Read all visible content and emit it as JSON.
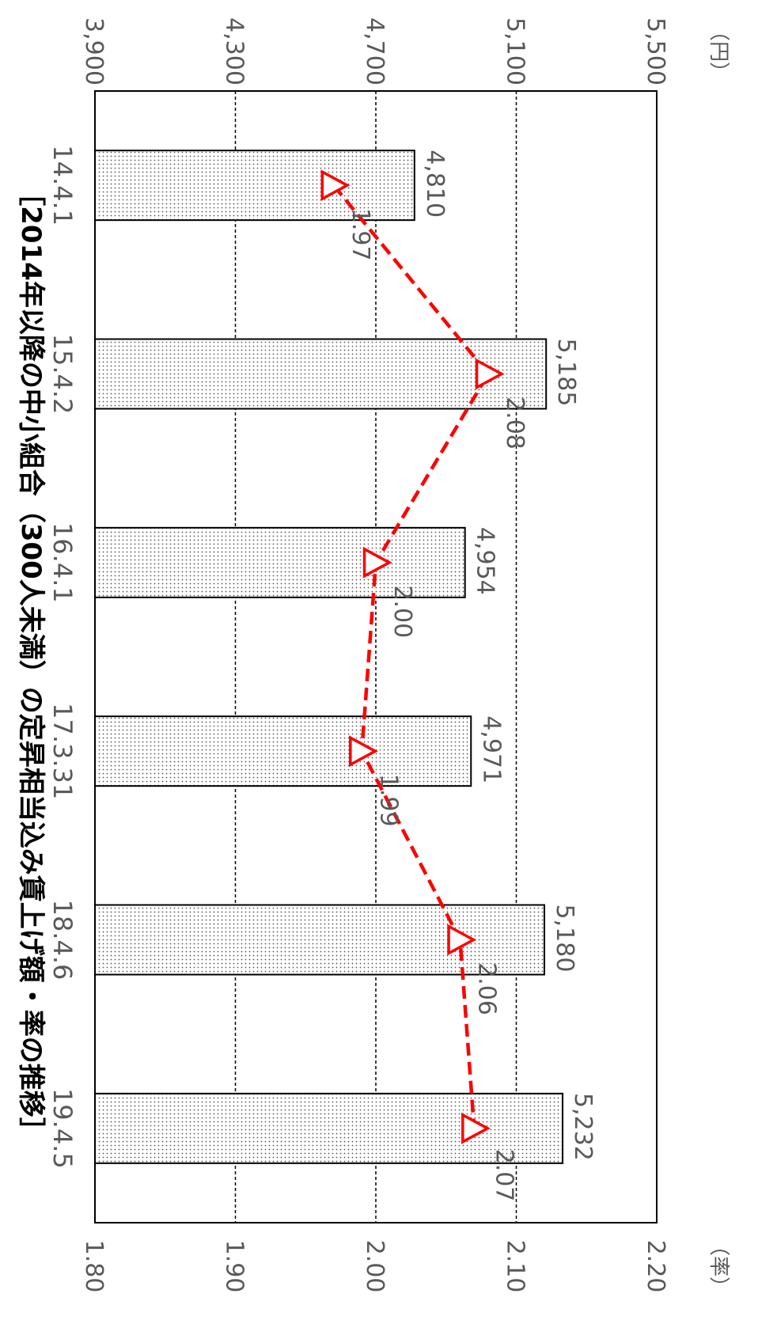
{
  "chart_data": {
    "type": "bar",
    "title": "［2014年以降の中小組合（300人未満）の定昇相当込み賃上げ額・率の推移］",
    "categories": [
      "14.4.1",
      "15.4.2",
      "16.4.1",
      "17.3.31",
      "18.4.6",
      "19.4.5"
    ],
    "series": [
      {
        "type": "bar",
        "values": [
          4810,
          5185,
          4954,
          4971,
          5180,
          5232
        ],
        "labels": [
          "4,810",
          "5,185",
          "4,954",
          "4,971",
          "5,180",
          "5,232"
        ],
        "axis": "left",
        "fill": "dotted"
      },
      {
        "type": "line",
        "values": [
          1.97,
          2.08,
          2.0,
          1.99,
          2.06,
          2.07
        ],
        "labels": [
          "1.97",
          "2.08",
          "2.00",
          "1.99",
          "2.06",
          "2.07"
        ],
        "axis": "right",
        "marker": "triangle",
        "line_style": "dashed"
      }
    ],
    "left_axis": {
      "unit": "（円）",
      "range": [
        3900,
        5500
      ],
      "ticks": [
        "3,900",
        "4,300",
        "4,700",
        "5,100",
        "5,500"
      ],
      "tick_values": [
        3900,
        4300,
        4700,
        5100,
        5500
      ]
    },
    "right_axis": {
      "unit": "（率）",
      "range": [
        1.8,
        2.2
      ],
      "ticks": [
        "1.80",
        "1.90",
        "2.00",
        "2.10",
        "2.20"
      ],
      "tick_values": [
        1.8,
        1.9,
        2.0,
        2.1,
        2.2
      ]
    },
    "grid": true,
    "orientation": "rotated-90-clockwise",
    "colors": {
      "bar_stroke": "#000000",
      "bar_dots": "#555555",
      "line": "#ff0000",
      "axis_text": "#595959",
      "title": "#000000"
    }
  }
}
